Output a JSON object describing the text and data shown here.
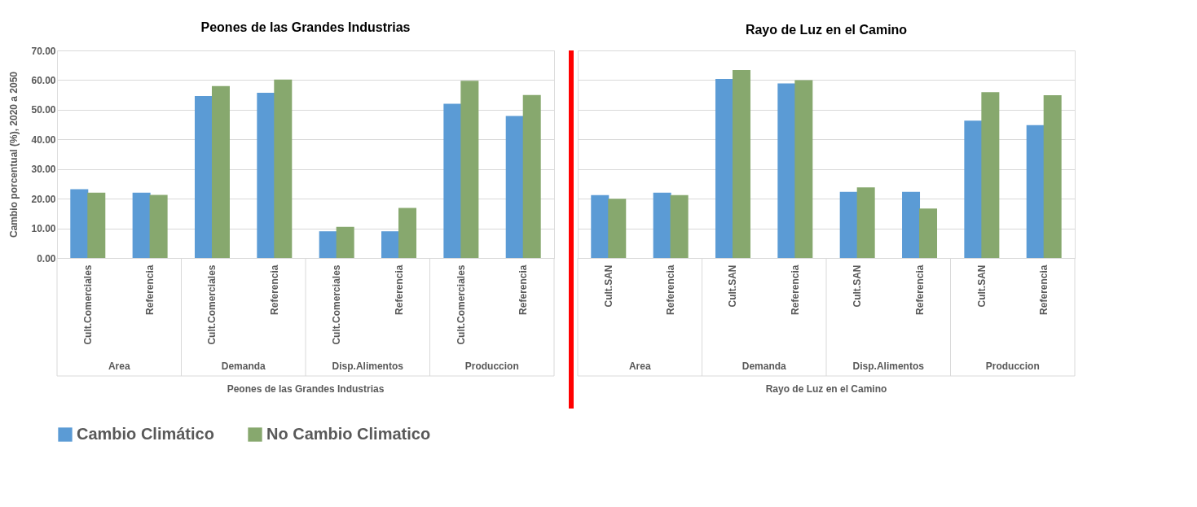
{
  "chart_data": [
    {
      "type": "bar",
      "title": "Peones de las Grandes Industrias",
      "ylabel": "Cambio porcentual (%), 2020 a 2050",
      "categories": [
        "Cult.Comerciales",
        "Referencia",
        "Cult.Comerciales",
        "Referencia",
        "Cult.Comerciales",
        "Referencia",
        "Cult.Comerciales",
        "Referencia"
      ],
      "series": [
        {
          "name": "Cambio Climático",
          "color": "#5b9bd5",
          "values": [
            23.2,
            22.0,
            54.6,
            55.7,
            9.0,
            9.0,
            52.0,
            47.9
          ]
        },
        {
          "name": "No Cambio Climatico",
          "color": "#87a86e",
          "values": [
            22.0,
            21.3,
            58.0,
            60.2,
            10.5,
            16.9,
            59.8,
            55.0
          ]
        }
      ],
      "ylim": [
        0,
        70
      ],
      "yticks": [
        {
          "value": 0,
          "label": "0.00"
        },
        {
          "value": 10,
          "label": "10.00"
        },
        {
          "value": 20,
          "label": "20.00"
        },
        {
          "value": 30,
          "label": "30.00"
        },
        {
          "value": 40,
          "label": "40.00"
        },
        {
          "value": 50,
          "label": "50.00"
        },
        {
          "value": 60,
          "label": "60.00"
        },
        {
          "value": 70,
          "label": "70.00"
        }
      ],
      "grid": "y",
      "legend": "bottom",
      "annotations": [
        "Area",
        "Demanda",
        "Disp.Alimentos",
        "Produccion",
        "Peones de las Grandes Industrias"
      ]
    },
    {
      "type": "bar",
      "title": "Rayo de Luz en el Camino",
      "categories": [
        "Cult.SAN",
        "Referencia",
        "Cult.SAN",
        "Referencia",
        "Cult.SAN",
        "Referencia",
        "Cult.SAN",
        "Referencia"
      ],
      "series": [
        {
          "name": "Cambio Climático",
          "color": "#5b9bd5",
          "values": [
            21.2,
            22.0,
            60.4,
            58.9,
            22.3,
            22.3,
            46.3,
            44.8
          ]
        },
        {
          "name": "No Cambio Climatico",
          "color": "#87a86e",
          "values": [
            20.0,
            21.2,
            63.4,
            60.0,
            23.8,
            16.7,
            55.9,
            54.9
          ]
        }
      ],
      "ylim": [
        0,
        70
      ],
      "yticks": [
        0,
        10,
        20,
        30,
        40,
        50,
        60,
        70
      ],
      "grid": "y",
      "legend": "bottom",
      "tick_labels": "x",
      "annotations": [
        "Area",
        "Demanda",
        "Disp.Alimentos",
        "Produccion",
        "Rayo de Luz en el Camino"
      ]
    }
  ]
}
